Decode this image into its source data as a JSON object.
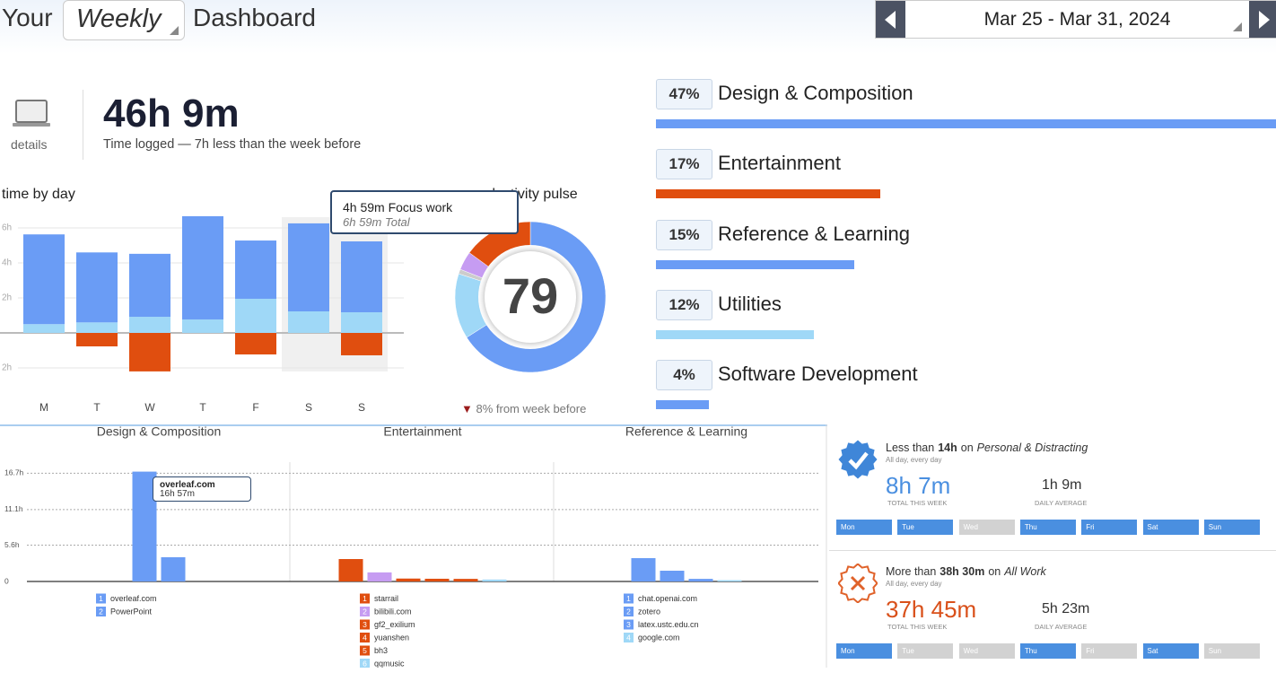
{
  "header": {
    "prefix": "Your",
    "period": "Weekly",
    "suffix": "Dashboard",
    "date_range": "Mar 25 - Mar 31, 2024"
  },
  "summary": {
    "icon_label": "details",
    "total": "46h 9m",
    "caption": "Time logged — 7h less than the week before"
  },
  "time_by_day": {
    "type": "bar",
    "stacked": true,
    "title": "time by day",
    "categories": [
      "M",
      "T",
      "W",
      "T",
      "F",
      "S",
      "S"
    ],
    "series": [
      {
        "color": "#9fd8f7",
        "values": [
          0.5,
          0.6,
          0.92,
          0.77,
          1.95,
          1.23,
          1.18
        ]
      },
      {
        "color": "#6a9cf5",
        "values": [
          5.13,
          4.0,
          3.6,
          5.9,
          3.33,
          5.03,
          4.05
        ]
      },
      {
        "color": "#e04e0f",
        "values": [
          0,
          -0.77,
          -2.2,
          0,
          -1.23,
          0,
          -1.28
        ]
      }
    ],
    "ylim": [
      -3,
      7
    ],
    "yticks": [
      {
        "value": -2,
        "label": "2h"
      },
      {
        "value": 2,
        "label": "2h"
      },
      {
        "value": 4,
        "label": "4h"
      },
      {
        "value": 6,
        "label": "6h"
      }
    ],
    "grid": true,
    "tooltip": {
      "title": "4h 59m Focus work",
      "subtitle": "6h 59m Total"
    }
  },
  "productivity_pulse": {
    "type": "pie",
    "title": "productivity pulse",
    "score": 79,
    "values": [
      66,
      14,
      1,
      4,
      15
    ],
    "colors": [
      "#6a9cf5",
      "#9fd8f7",
      "#cccccc",
      "#c69cf2",
      "#e04e0f"
    ],
    "change": "8% from week before"
  },
  "category_breakdown": {
    "type": "bar",
    "orientation": "horizontal",
    "categories": [
      "Design & Composition",
      "Entertainment",
      "Reference & Learning",
      "Utilities",
      "Software Development"
    ],
    "values": [
      47,
      17,
      15,
      12,
      4
    ],
    "value_labels": [
      "47%",
      "17%",
      "15%",
      "12%",
      "4%"
    ],
    "colors": [
      "#6a9cf5",
      "#e04e0f",
      "#6a9cf5",
      "#9fd8f7",
      "#6a9cf5"
    ]
  },
  "top_activities": {
    "type": "bar",
    "ylim": [
      0,
      18
    ],
    "yticks": [
      0,
      {
        "value": 5.6,
        "label": "5.6h"
      },
      {
        "value": 11.1,
        "label": "11.1h"
      },
      {
        "value": 16.7,
        "label": "16.7h"
      }
    ],
    "groups": [
      {
        "title": "Design & Composition",
        "items": [
          {
            "rank": "1",
            "name": "overleaf.com",
            "value": 16.95,
            "color": "#6a9cf5"
          },
          {
            "rank": "2",
            "name": "PowerPoint",
            "value": 3.74,
            "color": "#6a9cf5"
          }
        ]
      },
      {
        "title": "Entertainment",
        "items": [
          {
            "rank": "1",
            "name": "starrail",
            "value": 3.46,
            "color": "#e04e0f"
          },
          {
            "rank": "2",
            "name": "bilibili.com",
            "value": 1.4,
            "color": "#c69cf2"
          },
          {
            "rank": "3",
            "name": "gf2_exilium",
            "value": 0.45,
            "color": "#e04e0f"
          },
          {
            "rank": "4",
            "name": "yuanshen",
            "value": 0.42,
            "color": "#e04e0f"
          },
          {
            "rank": "5",
            "name": "bh3",
            "value": 0.4,
            "color": "#e04e0f"
          },
          {
            "rank": "6",
            "name": "qqmusic",
            "value": 0.3,
            "color": "#9fd8f7"
          }
        ]
      },
      {
        "title": "Reference & Learning",
        "items": [
          {
            "rank": "1",
            "name": "chat.openai.com",
            "value": 3.6,
            "color": "#6a9cf5"
          },
          {
            "rank": "2",
            "name": "zotero",
            "value": 1.66,
            "color": "#6a9cf5"
          },
          {
            "rank": "3",
            "name": "latex.ustc.edu.cn",
            "value": 0.4,
            "color": "#6a9cf5"
          },
          {
            "rank": "4",
            "name": "google.com",
            "value": 0.2,
            "color": "#9fd8f7"
          }
        ]
      }
    ],
    "tooltip": {
      "title": "overleaf.com",
      "subtitle": "16h 57m"
    }
  },
  "goals": [
    {
      "comparison": "Less than",
      "target": "14h",
      "connector": "on",
      "category": "Personal & Distracting",
      "schedule": "All day, every day",
      "total": "8h 7m",
      "total_label": "TOTAL THIS WEEK",
      "average": "1h 9m",
      "average_label": "DAILY AVERAGE",
      "color": "#4a8fe0",
      "days": [
        {
          "label": "Mon",
          "met": true
        },
        {
          "label": "Tue",
          "met": true
        },
        {
          "label": "Wed",
          "met": false
        },
        {
          "label": "Thu",
          "met": true
        },
        {
          "label": "Fri",
          "met": true
        },
        {
          "label": "Sat",
          "met": true
        },
        {
          "label": "Sun",
          "met": true
        }
      ]
    },
    {
      "comparison": "More than",
      "target": "38h 30m",
      "connector": "on",
      "category": "All Work",
      "schedule": "All day, every day",
      "total": "37h 45m",
      "total_label": "TOTAL THIS WEEK",
      "average": "5h 23m",
      "average_label": "DAILY AVERAGE",
      "color": "#d9501a",
      "days": [
        {
          "label": "Mon",
          "met": true
        },
        {
          "label": "Tue",
          "met": false
        },
        {
          "label": "Wed",
          "met": false
        },
        {
          "label": "Thu",
          "met": true
        },
        {
          "label": "Fri",
          "met": false
        },
        {
          "label": "Sat",
          "met": true
        },
        {
          "label": "Sun",
          "met": false
        }
      ]
    }
  ]
}
